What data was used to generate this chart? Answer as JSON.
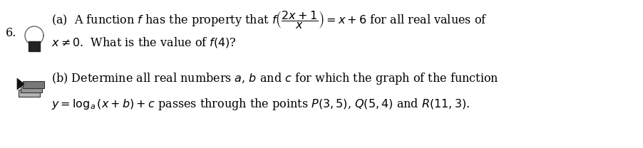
{
  "background_color": "#ffffff",
  "text_color": "#000000",
  "fig_width": 9.02,
  "fig_height": 2.08,
  "dpi": 100,
  "number": "6.",
  "part_a_line1": "(a)  A function $f$ has the property that $f\\left(\\dfrac{2x+1}{x}\\right) = x + 6$ for all real values of",
  "part_a_line2": "$x \\neq 0$.  What is the value of $f(4)$?",
  "part_b_line1": "(b) Determine all real numbers $a$, $b$ and $c$ for which the graph of the function",
  "part_b_line2": "$y = \\log_a(x + b) + c$ passes through the points $P(3, 5)$, $Q(5, 4)$ and $R(11, 3)$.",
  "fontsize": 11.5
}
